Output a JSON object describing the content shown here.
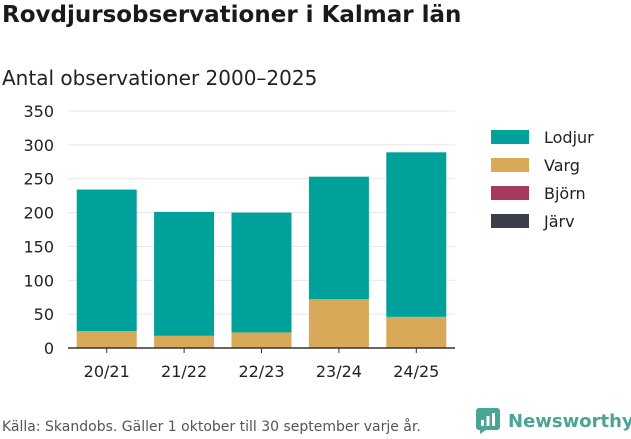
{
  "title": "Rovdjursobservationer i Kalmar län",
  "subtitle": "Antal observationer 2000–2025",
  "source": "Källa: Skandobs. Gäller 1 oktober till 30 september varje år.",
  "brand": {
    "name": "Newsworthy",
    "icon": "bar-chart-logo-icon"
  },
  "colors": {
    "Lodjur": "#00a19a",
    "Varg": "#d7a958",
    "Björn": "#a63a5c",
    "Järv": "#3c3d4a",
    "grid": "#e6e6e6",
    "axis": "#333333",
    "brand": "#4aa596"
  },
  "chart_data": {
    "type": "bar",
    "stacked": true,
    "categories": [
      "20/21",
      "21/22",
      "22/23",
      "23/24",
      "24/25"
    ],
    "series": [
      {
        "name": "Lodjur",
        "values": [
          209,
          183,
          177,
          181,
          243
        ]
      },
      {
        "name": "Varg",
        "values": [
          25,
          18,
          23,
          72,
          46
        ]
      },
      {
        "name": "Björn",
        "values": [
          0,
          0,
          0,
          0,
          0
        ]
      },
      {
        "name": "Järv",
        "values": [
          0,
          0,
          0,
          0,
          0
        ]
      }
    ],
    "ylim": [
      0,
      350
    ],
    "yticks": [
      0,
      50,
      100,
      150,
      200,
      250,
      300,
      350
    ],
    "xlabel": "",
    "ylabel": "",
    "grid": true,
    "legend": "right"
  }
}
